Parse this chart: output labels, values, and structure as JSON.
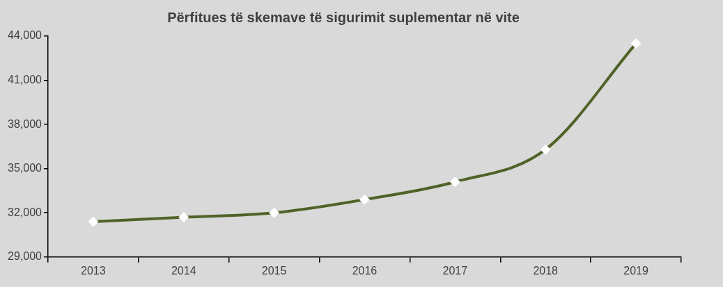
{
  "chart_data": {
    "type": "line",
    "title": "Përfitues të skemave të sigurimit suplementar në vite",
    "categories": [
      "2013",
      "2014",
      "2015",
      "2016",
      "2017",
      "2018",
      "2019"
    ],
    "series": [
      {
        "color": "#4f6228",
        "values": [
          31400,
          31700,
          32000,
          32900,
          34100,
          36300,
          43500
        ]
      }
    ],
    "ylim": [
      29000,
      44000
    ],
    "yticks": [
      {
        "value": 29000,
        "label": "29,000"
      },
      {
        "value": 32000,
        "label": "32,000"
      },
      {
        "value": 35000,
        "label": "35,000"
      },
      {
        "value": 38000,
        "label": "38,000"
      },
      {
        "value": 41000,
        "label": "41,000"
      },
      {
        "value": 44000,
        "label": "44,000"
      }
    ],
    "grid": false,
    "legend": false,
    "marker": "diamond",
    "line_style": "solid"
  }
}
